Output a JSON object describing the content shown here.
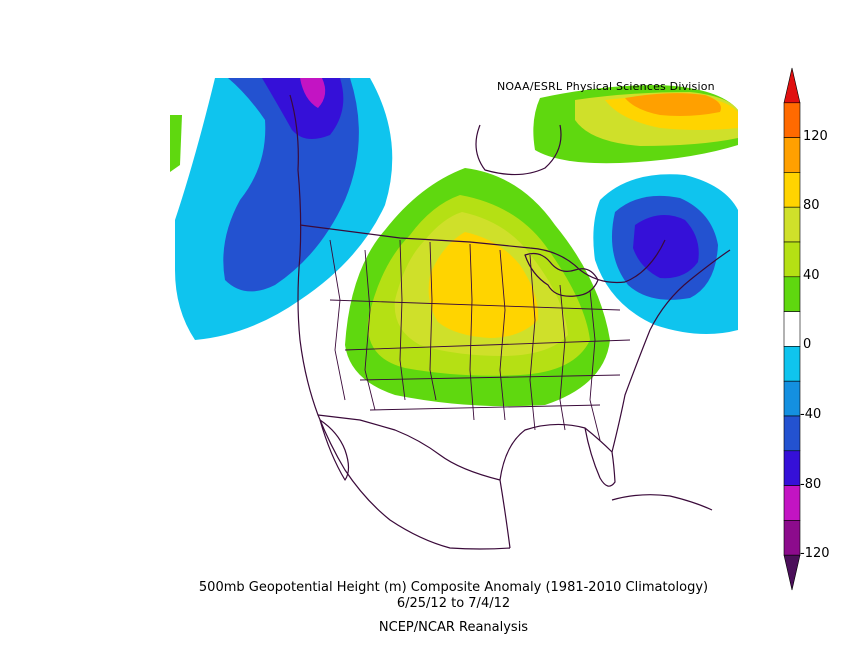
{
  "credit": "NOAA/ESRL Physical Sciences Division",
  "caption": {
    "line1": "500mb Geopotential Height (m) Composite Anomaly (1981-2010 Climatology)",
    "line2": "6/25/12  to 7/4/12",
    "line3": "NCEP/NCAR Reanalysis"
  },
  "colorbar": {
    "labels": [
      "120",
      "80",
      "40",
      "0",
      "-40",
      "-80",
      "-120"
    ],
    "bins": [
      {
        "range": "<-120",
        "color": "#4b0f5a"
      },
      {
        "range": "-120 to -100",
        "color": "#8c0b8c"
      },
      {
        "range": "-100 to -80",
        "color": "#c314c3"
      },
      {
        "range": "-80 to -60",
        "color": "#3510d8"
      },
      {
        "range": "-60 to -40",
        "color": "#2352d0"
      },
      {
        "range": "-40 to -20",
        "color": "#1490e0"
      },
      {
        "range": "-20 to 0",
        "color": "#0fc4ee"
      },
      {
        "range": "0 to 20",
        "color": "#ffffff"
      },
      {
        "range": "20 to 40",
        "color": "#5fd80f"
      },
      {
        "range": "40 to 60",
        "color": "#b5e014"
      },
      {
        "range": "60 to 80",
        "color": "#cfe02a"
      },
      {
        "range": "80 to 100",
        "color": "#ffd400"
      },
      {
        "range": "100 to 120",
        "color": "#ffa000"
      },
      {
        "range": "120 to 140",
        "color": "#ff6a00"
      },
      {
        "range": ">140",
        "color": "#e01010"
      }
    ]
  },
  "colors": {
    "coastline": "#3a0a3a",
    "ridge_center": "#ffd400",
    "trough_center": "#3510d8"
  }
}
